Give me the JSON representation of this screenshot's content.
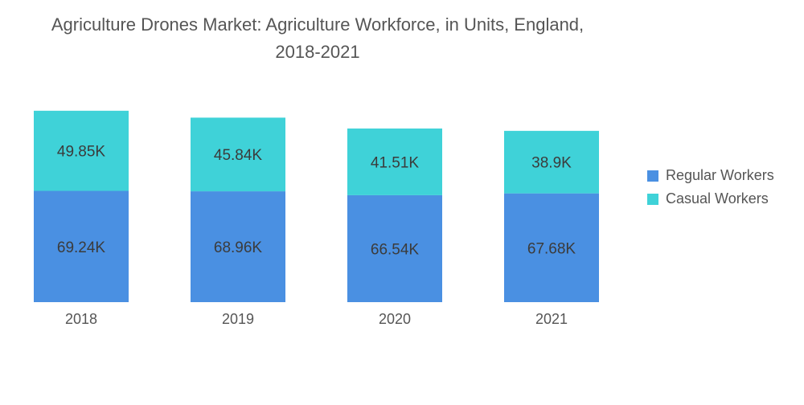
{
  "title": {
    "line1": "Agriculture Drones Market: Agriculture Workforce, in Units, England,",
    "line2": "2018-2021"
  },
  "colors": {
    "regular": "#4a90e2",
    "casual": "#3fd2d8",
    "text": "#555555",
    "bar_label": "#3b3b3b"
  },
  "chart_data": {
    "type": "bar",
    "stacked": true,
    "categories": [
      "2018",
      "2019",
      "2020",
      "2021"
    ],
    "series": [
      {
        "name": "Regular Workers",
        "values": [
          69.24,
          68.96,
          66.54,
          67.68
        ],
        "labels": [
          "69.24K",
          "68.96K",
          "66.54K",
          "67.68K"
        ]
      },
      {
        "name": "Casual Workers",
        "values": [
          49.85,
          45.84,
          41.51,
          38.9
        ],
        "labels": [
          "49.85K",
          "45.84K",
          "41.51K",
          "38.9K"
        ]
      }
    ],
    "unit": "K",
    "legend_position": "right",
    "grid": false
  }
}
